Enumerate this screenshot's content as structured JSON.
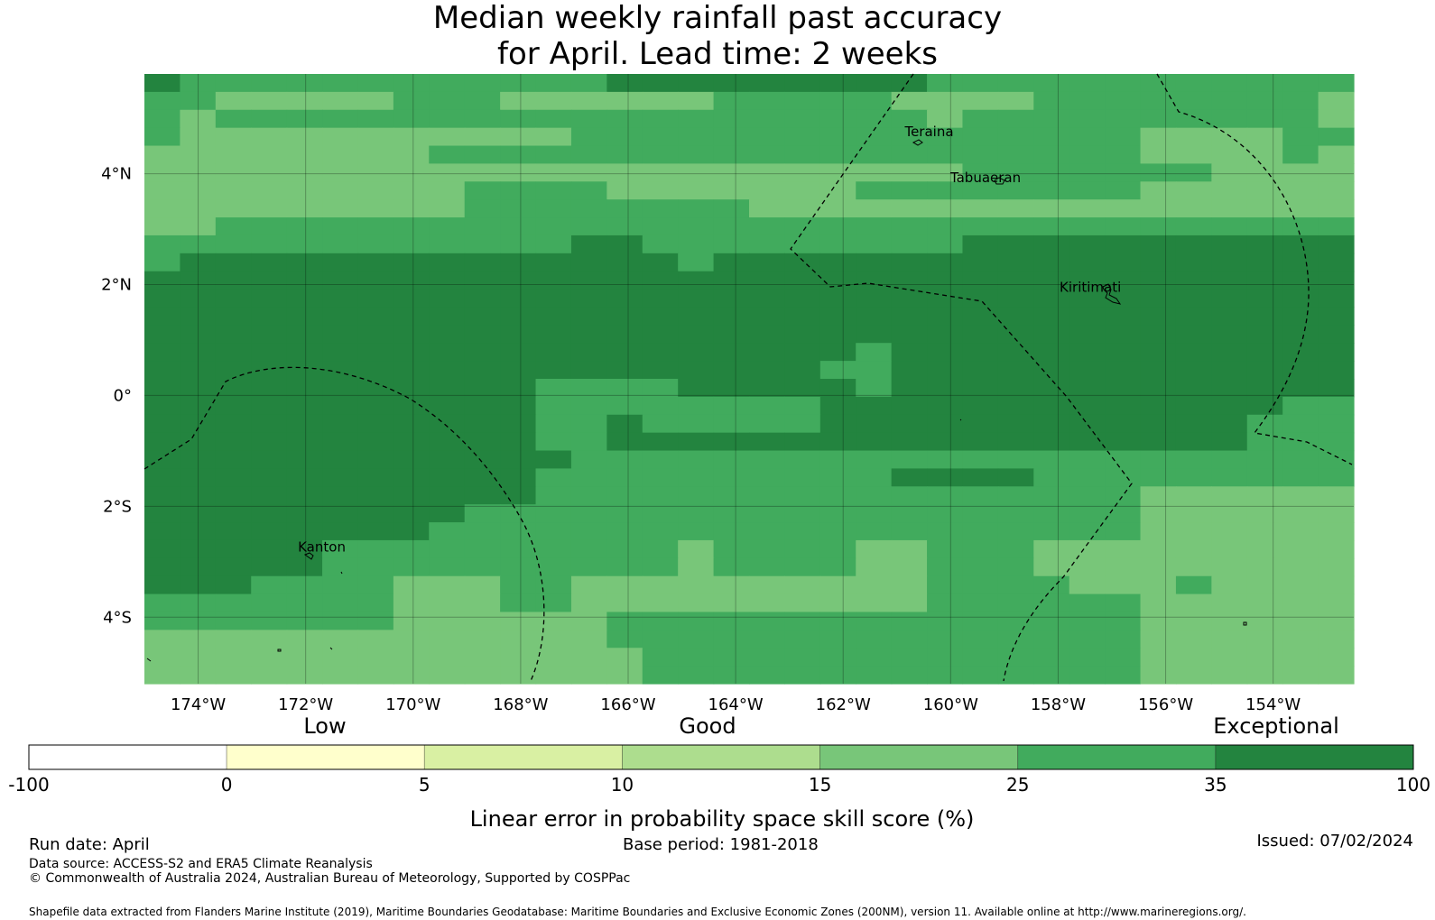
{
  "title": {
    "line1": "Median weekly rainfall past accuracy",
    "line2": "for April. Lead time: 2 weeks"
  },
  "map": {
    "lon_range": [
      -175,
      -152.5
    ],
    "lat_range": [
      -5.2,
      5.8
    ],
    "lon_ticks": [
      {
        "value": -174,
        "label": "174°W"
      },
      {
        "value": -172,
        "label": "172°W"
      },
      {
        "value": -170,
        "label": "170°W"
      },
      {
        "value": -168,
        "label": "168°W"
      },
      {
        "value": -166,
        "label": "166°W"
      },
      {
        "value": -164,
        "label": "164°W"
      },
      {
        "value": -162,
        "label": "162°W"
      },
      {
        "value": -160,
        "label": "160°W"
      },
      {
        "value": -158,
        "label": "158°W"
      },
      {
        "value": -156,
        "label": "156°W"
      },
      {
        "value": -154,
        "label": "154°W"
      }
    ],
    "lat_ticks": [
      {
        "value": 4,
        "label": "4°N"
      },
      {
        "value": 2,
        "label": "2°N"
      },
      {
        "value": 0,
        "label": "0°"
      },
      {
        "value": -2,
        "label": "2°S"
      },
      {
        "value": -4,
        "label": "4°S"
      }
    ],
    "grid_lines": true,
    "places": [
      {
        "name": "Teraina",
        "lon": -160.4,
        "lat": 4.68
      },
      {
        "name": "Tabuaeran",
        "lon": -159.35,
        "lat": 3.85
      },
      {
        "name": "Kiritimati",
        "lon": -157.4,
        "lat": 1.87
      },
      {
        "name": "Kanton",
        "lon": -171.7,
        "lat": -2.82
      }
    ],
    "skill_grid_description_legend_index": "cell values are colorbar band indices: 4=10-15, 5=15-25, 6=25-35, 7=35-100",
    "skill_grid": [
      "7666666666666777777777666666666666",
      "6655555666555555666665555666666665",
      "6566666666666666666666566666666665",
      "6555555555556666666666666666555566",
      "5555555566666666666666666666555565",
      "5555555555555555555555566666665555",
      "5555555556666555555566666666555555",
      "5555555556666666655555555555555555",
      "5566666666666666666666666666666666",
      "6666666666667766666666677777777777",
      "6777777777777776777777777777777777",
      "7777777777777777777777777777777777",
      "7777777777777777777777777777777777",
      "7777777777777777777777777777777777",
      "7777777777777777777777777777777777",
      "7777777777777777777767777777777777",
      "7777777777777777777667777777777777",
      "7777777777766667777767777777777777",
      "7777777777766666666777777777777766",
      "7777777777766766666777777777777666",
      "7777777777766777777777777777777666",
      "7777777777776666666666666666666666",
      "7777777777766666666667777666666666",
      "7777777777766666666666666666555555",
      "7777777776666666666666666666555555",
      "7777777766666666666666666666555555",
      "7777766666666665666655666555555555",
      "7777766666666665666655666555555555",
      "7776666555665555555555666655565555",
      "6666666555665555555555666666555555",
      "6666666555555666666666666666555555",
      "5555555555555666666666666666555555",
      "5555555555555566666666666666555555",
      "5555555555555566666666666666555555"
    ],
    "colors": {
      "band_7": "#23843f",
      "band_6": "#41ab5d",
      "band_5": "#78c679",
      "band_4": "#addd8e",
      "boundary": "#000000"
    }
  },
  "colorbar": {
    "category_labels": [
      "Low",
      "Good",
      "Exceptional"
    ],
    "boundaries": [
      "-100",
      "0",
      "5",
      "10",
      "15",
      "25",
      "35",
      "100"
    ],
    "band_colors": [
      "#ffffff",
      "#ffffcc",
      "#d9f0a3",
      "#addd8e",
      "#78c679",
      "#41ab5d",
      "#23843f"
    ],
    "label": "Linear error in probability space skill score (%)"
  },
  "footer": {
    "run_date": "Run date: April",
    "base_period": "Base period: 1981-2018",
    "issued": "Issued: 07/02/2024",
    "data_source": "Data source: ACCESS-S2 and ERA5 Climate Reanalysis",
    "copyright": "© Commonwealth of Australia 2024, Australian Bureau of Meteorology, Supported by COSPPac",
    "shapefile": "Shapefile data extracted from Flanders Marine Institute (2019), Maritime Boundaries Geodatabase: Maritime Boundaries and Exclusive Economic Zones (200NM), version 11. Available online at http://www.marineregions.org/."
  }
}
